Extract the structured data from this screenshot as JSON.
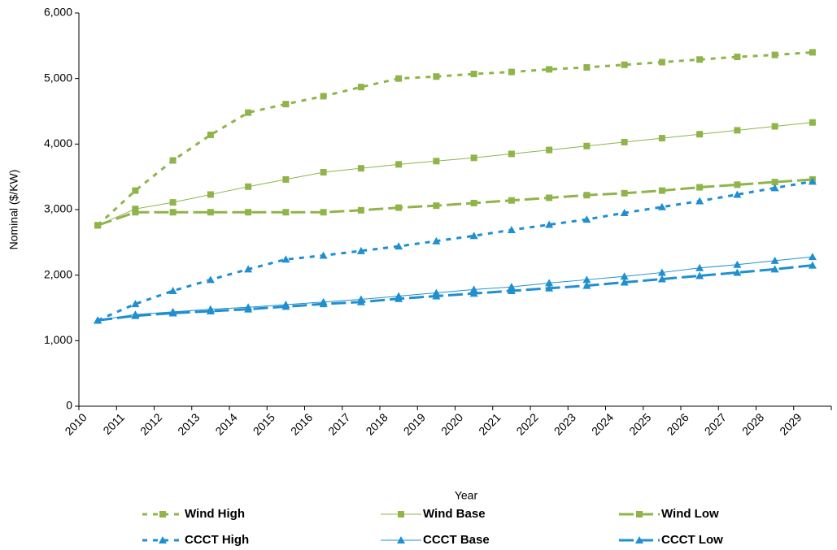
{
  "chart_data": {
    "type": "line",
    "x_label": "Year",
    "y_label": "Nominal ($/KW)",
    "categories": [
      "2010",
      "2011",
      "2012",
      "2013",
      "2014",
      "2015",
      "2016",
      "2017",
      "2018",
      "2019",
      "2020",
      "2021",
      "2022",
      "2023",
      "2024",
      "2025",
      "2026",
      "2027",
      "2028",
      "2029"
    ],
    "ylim": [
      0,
      6000
    ],
    "yticks": [
      0,
      {
        "value": 1000,
        "label": "1,000"
      },
      {
        "value": 2000,
        "label": "2,000"
      },
      {
        "value": 3000,
        "label": "3,000"
      },
      {
        "value": 4000,
        "label": "4,000"
      },
      {
        "value": 5000,
        "label": "5,000"
      },
      {
        "value": 6000,
        "label": "6,000"
      }
    ],
    "grid": false,
    "legend": "bottom",
    "series": [
      {
        "name": "Wind High",
        "color": "#8fb44a",
        "line": "dotted",
        "marker": "square",
        "values": [
          2760,
          3290,
          3750,
          4140,
          4480,
          4610,
          4730,
          4870,
          5000,
          5030,
          5070,
          5100,
          5140,
          5170,
          5210,
          5250,
          5290,
          5330,
          5360,
          5400
        ]
      },
      {
        "name": "Wind Base",
        "color": "#8fb44a",
        "line": "thin",
        "marker": "square",
        "values": [
          2760,
          3010,
          3110,
          3230,
          3350,
          3460,
          3570,
          3630,
          3690,
          3740,
          3790,
          3850,
          3910,
          3970,
          4030,
          4090,
          4150,
          4210,
          4270,
          4330
        ]
      },
      {
        "name": "Wind Low",
        "color": "#8fb44a",
        "line": "dashed",
        "marker": "square",
        "values": [
          2760,
          2960,
          2960,
          2960,
          2960,
          2960,
          2960,
          2990,
          3030,
          3060,
          3100,
          3140,
          3180,
          3220,
          3250,
          3290,
          3340,
          3380,
          3420,
          3460
        ]
      },
      {
        "name": "CCCT High",
        "color": "#1f8fd0",
        "line": "dotted",
        "marker": "triangle",
        "values": [
          1310,
          1560,
          1760,
          1930,
          2090,
          2240,
          2300,
          2370,
          2440,
          2520,
          2600,
          2690,
          2770,
          2850,
          2950,
          3040,
          3130,
          3230,
          3330,
          3430
        ]
      },
      {
        "name": "CCCT Base",
        "color": "#1f8fd0",
        "line": "thin",
        "marker": "triangle",
        "values": [
          1310,
          1400,
          1440,
          1480,
          1510,
          1550,
          1590,
          1630,
          1680,
          1730,
          1780,
          1820,
          1880,
          1930,
          1980,
          2040,
          2110,
          2160,
          2220,
          2280
        ]
      },
      {
        "name": "CCCT Low",
        "color": "#1f8fd0",
        "line": "dashed",
        "marker": "triangle",
        "values": [
          1310,
          1380,
          1420,
          1450,
          1480,
          1520,
          1560,
          1590,
          1640,
          1680,
          1720,
          1760,
          1800,
          1840,
          1890,
          1940,
          1990,
          2040,
          2090,
          2150
        ]
      }
    ]
  }
}
